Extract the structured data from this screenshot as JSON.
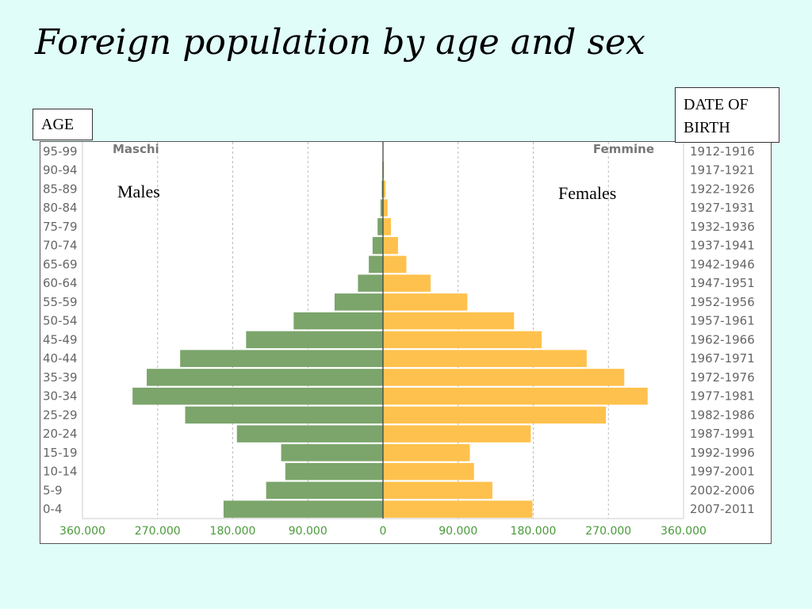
{
  "slide": {
    "title": "Foreign population by age and sex",
    "age_box": "AGE",
    "dob_box_line1": "DATE OF",
    "dob_box_line2": "BIRTH",
    "males_annotation": "Males",
    "females_annotation": "Females"
  },
  "colors": {
    "background": "#e0fdf9",
    "male_bar": "#7ba56b",
    "female_bar": "#ffc14d",
    "axis_tick_text": "#4a9a3a",
    "label_text": "#666666"
  },
  "chart_data": {
    "type": "bar",
    "orientation": "horizontal-population-pyramid",
    "left_label": "Maschi",
    "right_label": "Femmine",
    "age_groups": [
      "95-99",
      "90-94",
      "85-89",
      "80-84",
      "75-79",
      "70-74",
      "65-69",
      "60-64",
      "55-59",
      "50-54",
      "45-49",
      "40-44",
      "35-39",
      "30-34",
      "25-29",
      "20-24",
      "15-19",
      "10-14",
      "5-9",
      "0-4"
    ],
    "birth_years": [
      "1912-1916",
      "1917-1921",
      "1922-1926",
      "1927-1931",
      "1932-1936",
      "1937-1941",
      "1942-1946",
      "1947-1951",
      "1952-1956",
      "1957-1961",
      "1962-1966",
      "1967-1971",
      "1972-1976",
      "1977-1981",
      "1982-1986",
      "1987-1991",
      "1992-1996",
      "1997-2001",
      "2002-2006",
      "2007-2011"
    ],
    "series": [
      {
        "name": "Maschi",
        "values": [
          300,
          700,
          1500,
          3000,
          6500,
          12500,
          17000,
          30000,
          58000,
          107000,
          164000,
          243000,
          283000,
          300000,
          237000,
          175000,
          122000,
          117000,
          140000,
          191000
        ]
      },
      {
        "name": "Femmine",
        "values": [
          400,
          1200,
          3000,
          5500,
          9500,
          18000,
          28000,
          57000,
          101000,
          157000,
          190000,
          244000,
          289000,
          317000,
          267000,
          177000,
          104000,
          109000,
          131000,
          179000
        ]
      }
    ],
    "x_ticks": [
      "360.000",
      "270.000",
      "180.000",
      "90.000",
      "0",
      "90.000",
      "180.000",
      "270.000",
      "360.000"
    ],
    "xlim": [
      -360000,
      360000
    ],
    "grid": true
  }
}
